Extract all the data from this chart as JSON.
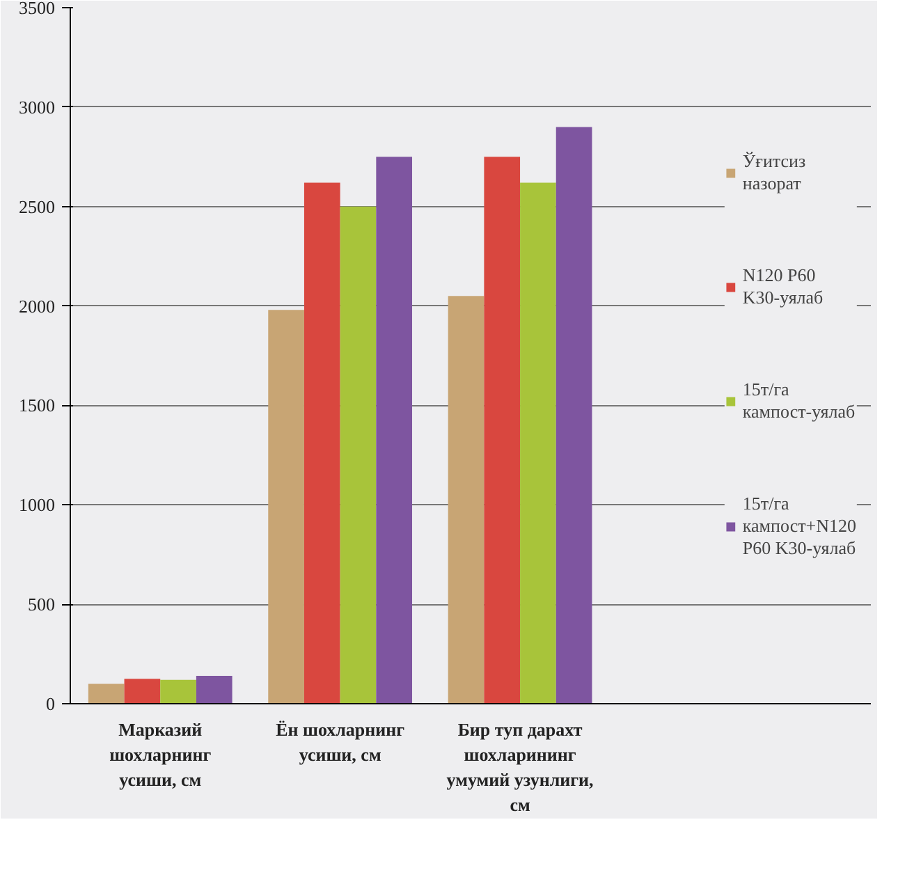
{
  "chart_data": {
    "type": "bar",
    "categories": [
      "Марказий шохларнинг усиши, см",
      "Ён шохларнинг усиши, см",
      "Бир туп дарахт шохларининг умумий узунлиги, см"
    ],
    "series": [
      {
        "name": "Ўғитсиз назорат",
        "color": "#c8a574",
        "values": [
          100,
          1980,
          2050
        ]
      },
      {
        "name": "N120 P60 K30-уялаб",
        "color": "#d9473f",
        "values": [
          125,
          2620,
          2750
        ]
      },
      {
        "name": "15т/га кампост-уялаб",
        "color": "#a8c43a",
        "values": [
          120,
          2500,
          2620
        ]
      },
      {
        "name": "15т/га кампост+N120 P60 K30-уялаб",
        "color": "#7e55a0",
        "values": [
          140,
          2750,
          2900
        ]
      }
    ],
    "ylim": [
      0,
      3500
    ],
    "yticks": [
      0,
      500,
      1000,
      1500,
      2000,
      2500,
      3000,
      3500
    ],
    "grid": "y",
    "legend": "right"
  }
}
